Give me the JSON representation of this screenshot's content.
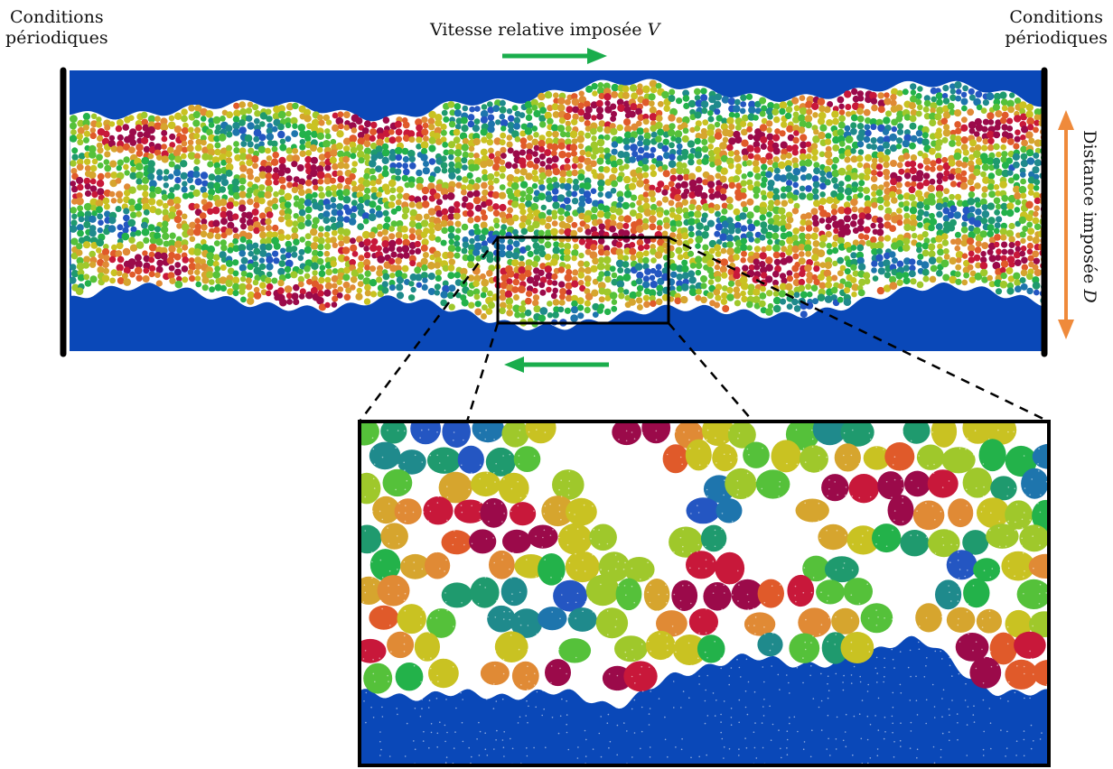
{
  "labels": {
    "left_condition_line1": "Conditions",
    "left_condition_line2": "périodiques",
    "right_condition_line1": "Conditions",
    "right_condition_line2": "périodiques",
    "velocity_text": "Vitesse relative imposée ",
    "velocity_symbol": "V",
    "distance_text": "Distance imposée ",
    "distance_symbol": "D"
  },
  "colors": {
    "wall_blue": "#0a48b8",
    "velocity_arrow": "#1aad4c",
    "distance_arrow": "#ef8a3b",
    "boundary_line": "#000000",
    "particle_palette": [
      "#9b0a4a",
      "#c8183a",
      "#e05a2a",
      "#e08a35",
      "#d6a52e",
      "#c9c222",
      "#9fc82b",
      "#55c13a",
      "#23b24a",
      "#1f9a6e",
      "#1f8a8c",
      "#1e75ad",
      "#2456c2"
    ]
  },
  "icons": {
    "velocity_top_arrow": "arrow-right-icon",
    "velocity_bottom_arrow": "arrow-left-icon",
    "distance_arrow": "double-arrow-vertical-icon"
  }
}
